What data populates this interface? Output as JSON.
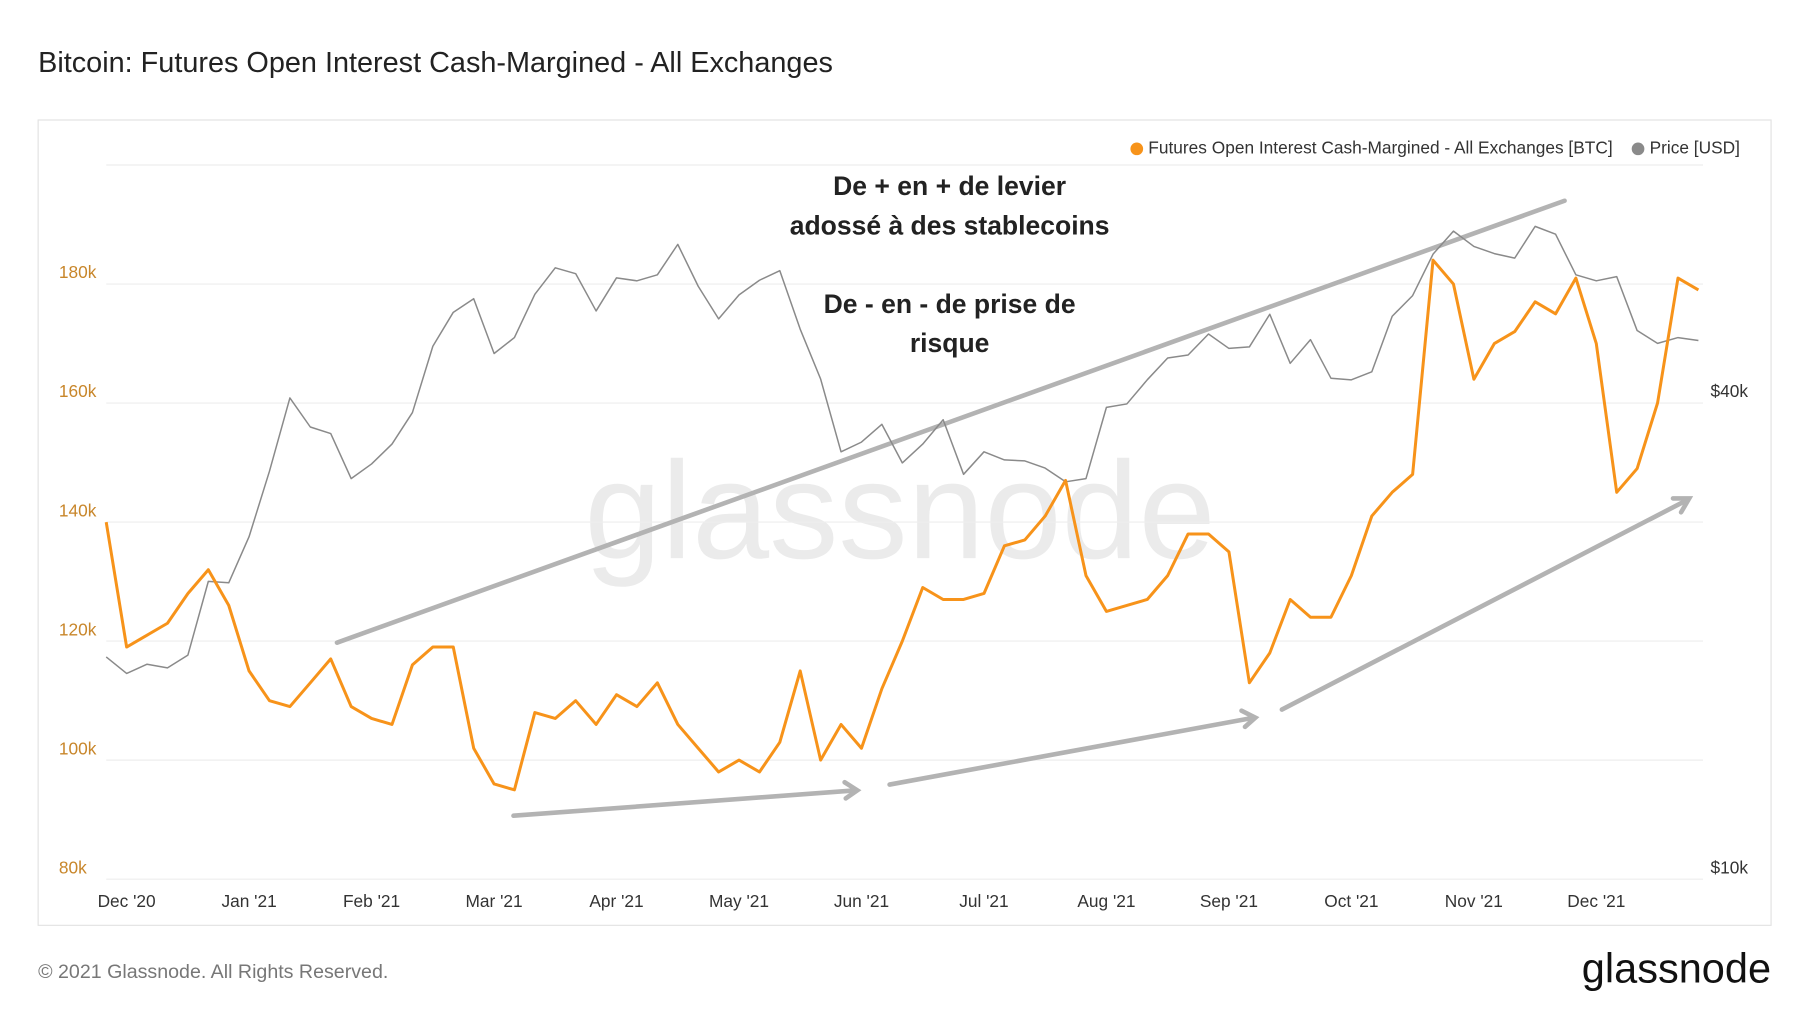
{
  "chart_data": {
    "type": "line",
    "title": "Bitcoin: Futures Open Interest Cash-Margined - All Exchanges",
    "categories": [
      null,
      "Dec '20",
      null,
      null,
      null,
      null,
      null,
      "Jan '21",
      null,
      null,
      null,
      null,
      null,
      "Feb '21",
      null,
      null,
      null,
      null,
      null,
      "Mar '21",
      null,
      null,
      null,
      null,
      null,
      "Apr '21",
      null,
      null,
      null,
      null,
      null,
      "May '21",
      null,
      null,
      null,
      null,
      null,
      "Jun '21",
      null,
      null,
      null,
      null,
      null,
      "Jul '21",
      null,
      null,
      null,
      null,
      null,
      "Aug '21",
      null,
      null,
      null,
      null,
      null,
      "Sep '21",
      null,
      null,
      null,
      null,
      null,
      "Oct '21",
      null,
      null,
      null,
      null,
      null,
      "Nov '21",
      null,
      null,
      null,
      null,
      null,
      "Dec '21",
      null,
      null,
      null,
      null,
      null
    ],
    "series": [
      {
        "name": "Futures Open Interest Cash-Margined - All Exchanges [BTC]",
        "color": "#f7931a",
        "values": [
          140000,
          119000,
          121000,
          123000,
          128000,
          132000,
          126000,
          115000,
          110000,
          109000,
          113000,
          117000,
          109000,
          107000,
          106000,
          116000,
          119000,
          119000,
          102000,
          96000,
          95000,
          108000,
          107000,
          110000,
          106000,
          111000,
          109000,
          113000,
          106000,
          102000,
          98000,
          100000,
          98000,
          103000,
          115000,
          100000,
          106000,
          102000,
          112000,
          120000,
          129000,
          127000,
          127000,
          128000,
          136000,
          137000,
          141000,
          147000,
          131000,
          125000,
          126000,
          127000,
          131000,
          138000,
          138000,
          135000,
          113000,
          118000,
          127000,
          124000,
          124000,
          131000,
          141000,
          145000,
          148000,
          184000,
          180000,
          164000,
          170000,
          172000,
          177000,
          175000,
          181000,
          170000,
          145000,
          149000,
          160000,
          181000,
          179000
        ]
      },
      {
        "name": "Price [USD]",
        "color": "#8a8a8a",
        "axis": "y2",
        "values": [
          19100,
          18200,
          18700,
          18500,
          19200,
          23800,
          23700,
          27100,
          32800,
          40600,
          37300,
          36600,
          32100,
          33500,
          35500,
          38900,
          47200,
          52100,
          54200,
          46200,
          48400,
          54900,
          59300,
          58300,
          52300,
          57600,
          57100,
          58100,
          63500,
          56200,
          51100,
          54800,
          57200,
          58800,
          49600,
          42900,
          34700,
          35700,
          37600,
          33600,
          35500,
          38100,
          32500,
          34700,
          33900,
          33800,
          33100,
          31800,
          32100,
          39500,
          39900,
          42800,
          45600,
          46000,
          48900,
          46900,
          47100,
          51800,
          44900,
          48100,
          43000,
          42800,
          43800,
          51500,
          54700,
          61700,
          66000,
          63100,
          61800,
          61000,
          66900,
          65400,
          58100,
          57100,
          57800,
          49400,
          47600,
          48400,
          48000
        ]
      }
    ],
    "ylim": [
      80000,
      200000
    ],
    "yticks": [
      {
        "value": 80000,
        "label": "80k"
      },
      {
        "value": 100000,
        "label": "100k"
      },
      {
        "value": 120000,
        "label": "120k"
      },
      {
        "value": 140000,
        "label": "140k"
      },
      {
        "value": 160000,
        "label": "160k"
      },
      {
        "value": 180000,
        "label": "180k"
      }
    ],
    "y2lim": [
      10000,
      80000
    ],
    "y2scale": "log",
    "y2ticks": [
      {
        "value": 10000,
        "label": "$10k"
      },
      {
        "value": 40000,
        "label": "$40k"
      }
    ],
    "grid": true,
    "legend": "top-right",
    "annotations": [
      "De + en + de levier",
      "adossé à des stablecoins",
      "De - en - de prise de",
      "risque"
    ],
    "watermark": "glassnode"
  },
  "footer": {
    "copyright": "© 2021 Glassnode. All Rights Reserved.",
    "logo": "glassnode"
  }
}
